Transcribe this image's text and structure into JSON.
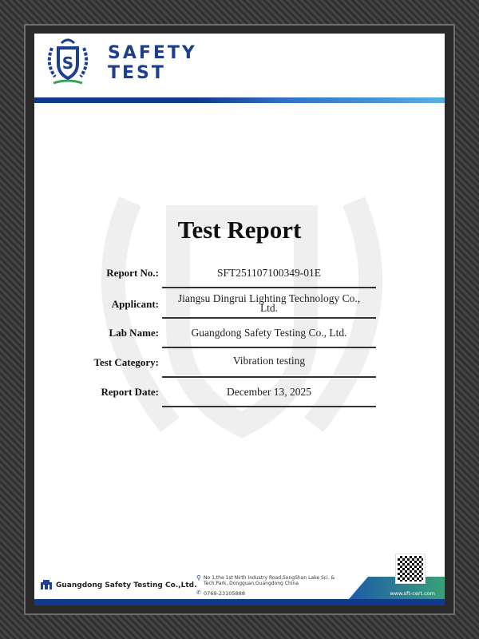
{
  "header": {
    "brand_line1": "SAFETY",
    "brand_line2": "TEST"
  },
  "title": "Test Report",
  "fields": [
    {
      "label": "Report No.:",
      "value": "SFT251107100349-01E"
    },
    {
      "label": "Applicant:",
      "value": "Jiangsu Dingrui Lighting Technology Co., Ltd."
    },
    {
      "label": "Lab Name:",
      "value": "Guangdong Safety Testing Co., Ltd."
    },
    {
      "label": "Test Category:",
      "value": "Vibration testing"
    },
    {
      "label": "Report Date:",
      "value": "December 13, 2025"
    }
  ],
  "footer": {
    "company": "Guangdong Safety Testing Co.,Ltd.",
    "address": "No 1,the 1st Nirth Industry Road,SongShan Lake Sci. & Tech.Park, Dongguan,Guangdong China",
    "phone": "0769-23105888",
    "website": "www.sft-cert.com"
  },
  "colors": {
    "brand": "#1d3f8f",
    "accent": "#5aaee0",
    "footer_green": "#3aa07a"
  }
}
